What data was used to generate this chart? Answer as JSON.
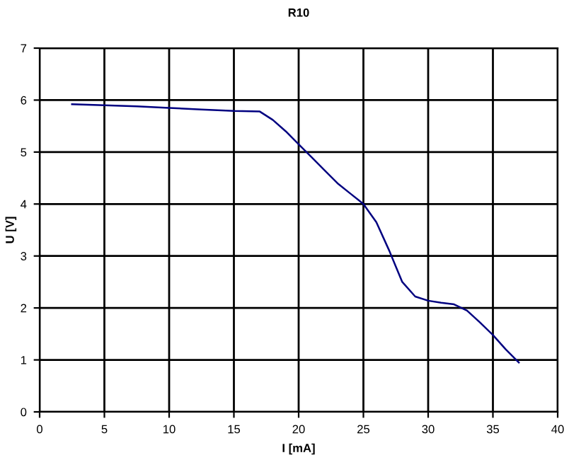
{
  "chart_data": {
    "type": "line",
    "title": "R10",
    "xlabel": "I [mA]",
    "ylabel": "U [V]",
    "series": [
      {
        "color": "#000080",
        "x": [
          2.5,
          5,
          7.5,
          10,
          12.5,
          15,
          17,
          18,
          19,
          20,
          21,
          22,
          23,
          24,
          25,
          26,
          27,
          27.5,
          28,
          29,
          30,
          31,
          32,
          33,
          34,
          35,
          36,
          37
        ],
        "values": [
          5.92,
          5.9,
          5.88,
          5.85,
          5.82,
          5.79,
          5.78,
          5.62,
          5.4,
          5.15,
          4.9,
          4.65,
          4.4,
          4.2,
          4.0,
          3.65,
          3.1,
          2.8,
          2.5,
          2.22,
          2.14,
          2.1,
          2.07,
          1.95,
          1.72,
          1.48,
          1.2,
          0.95
        ]
      }
    ],
    "xlim": [
      0,
      40
    ],
    "ylim": [
      0,
      7
    ],
    "xticks": [
      0,
      5,
      10,
      15,
      20,
      25,
      30,
      35,
      40
    ],
    "yticks": [
      0,
      1,
      2,
      3,
      4,
      5,
      6,
      7
    ],
    "grid": true,
    "legend": false,
    "marker": "none",
    "line_style": "solid"
  }
}
